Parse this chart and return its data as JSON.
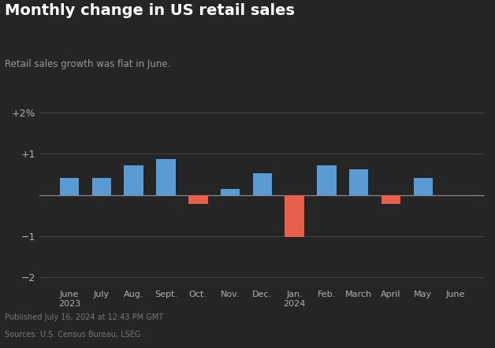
{
  "title": "Monthly change in US retail sales",
  "subtitle": "Retail sales growth was flat in June.",
  "footnote1": "Published July 16, 2024 at 12:43 PM GMT",
  "footnote2": "Sources: U.S. Census Bureau, LSEG",
  "categories": [
    "June\n2023",
    "July",
    "Aug.",
    "Sept.",
    "Oct.",
    "Nov.",
    "Dec.",
    "Jan.\n2024",
    "Feb.",
    "March",
    "April",
    "May",
    "June"
  ],
  "values": [
    0.42,
    0.42,
    0.72,
    0.88,
    -0.22,
    0.15,
    0.52,
    -1.02,
    0.72,
    0.62,
    -0.22,
    0.42,
    0.0
  ],
  "bar_colors": [
    "#5b9bd5",
    "#5b9bd5",
    "#5b9bd5",
    "#5b9bd5",
    "#e8604c",
    "#5b9bd5",
    "#5b9bd5",
    "#e8604c",
    "#5b9bd5",
    "#5b9bd5",
    "#e8604c",
    "#5b9bd5",
    "#5b9bd5"
  ],
  "bg_color": "#252525",
  "text_color": "#b0b0b0",
  "grid_color": "#4a4a4a",
  "zero_line_color": "#888888",
  "ylim": [
    -2.2,
    2.2
  ],
  "yticks": [
    -2,
    -1,
    0,
    1,
    2
  ],
  "ytick_labels": [
    "−2",
    "−1",
    "",
    "+1",
    "+2%"
  ],
  "title_color": "#ffffff",
  "subtitle_color": "#999999",
  "footnote_color": "#777777",
  "bar_width": 0.6
}
